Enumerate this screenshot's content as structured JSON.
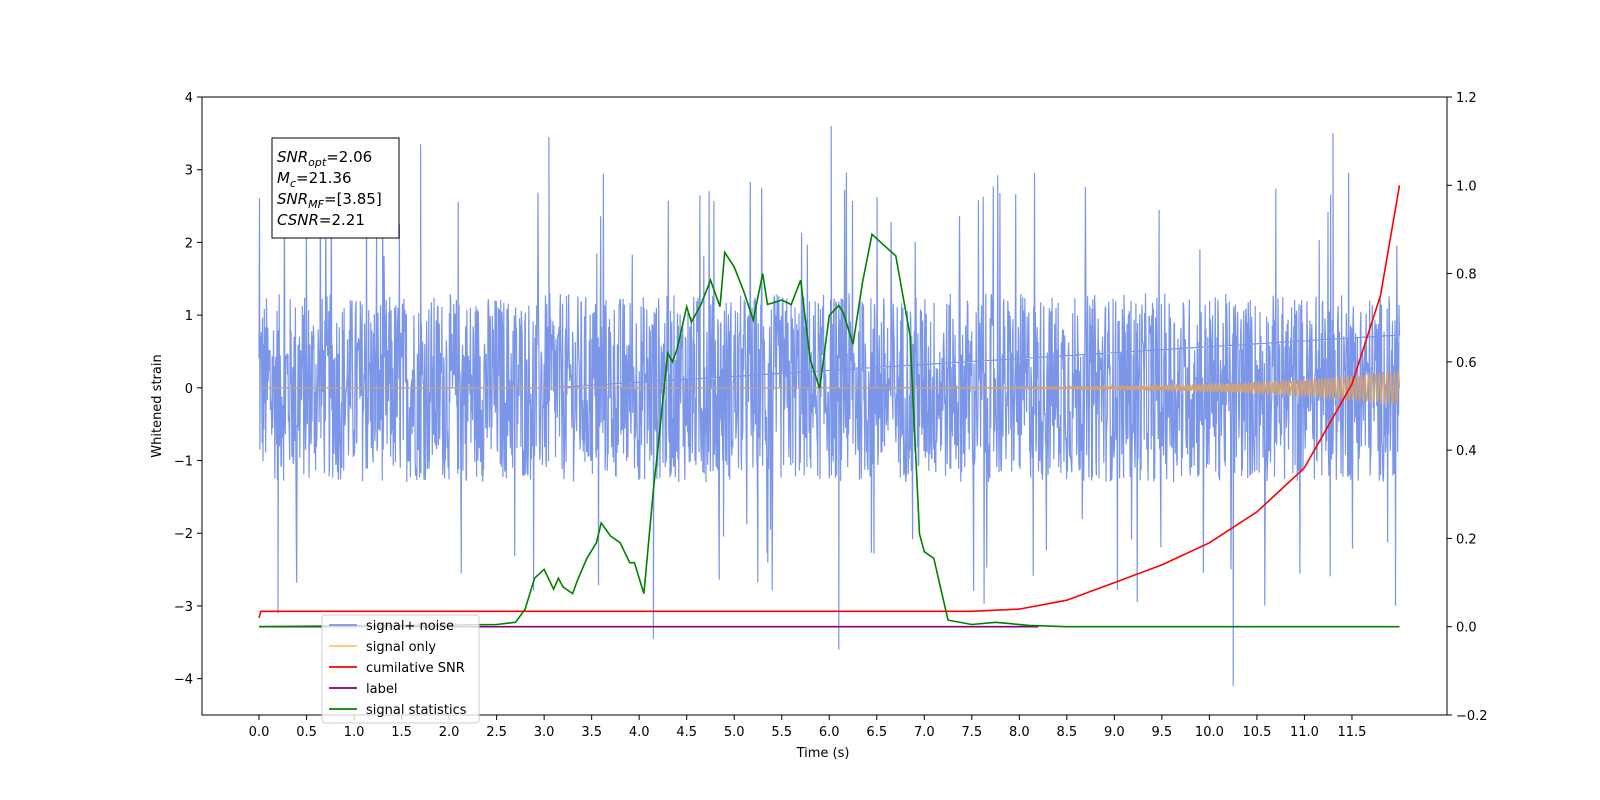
{
  "chart_data": {
    "type": "line",
    "title": "",
    "xlabel": "Time (s)",
    "ylabel": "Whitened strain",
    "x_ticks": [
      "0.0",
      "0.5",
      "1.0",
      "1.5",
      "2.0",
      "2.5",
      "3.0",
      "3.5",
      "4.0",
      "4.5",
      "5.0",
      "5.5",
      "6.0",
      "6.5",
      "7.0",
      "7.5",
      "8.0",
      "8.5",
      "9.0",
      "9.5",
      "10.0",
      "10.5",
      "11.0",
      "11.5"
    ],
    "xlim": [
      -0.6,
      12.5
    ],
    "ylim_left": [
      -4.5,
      4
    ],
    "ylim_right": [
      -0.2,
      1.2
    ],
    "y_ticks_left": [
      4,
      3,
      2,
      1,
      0,
      -1,
      -2,
      -3,
      -4
    ],
    "y_ticks_right": [
      "1.2",
      "1.0",
      "0.8",
      "0.6",
      "0.4",
      "0.2",
      "0.0",
      "−0.2"
    ],
    "info_box": [
      {
        "base": "SNR",
        "sub": "opt",
        "value": "=2.06"
      },
      {
        "base": "M",
        "sub": "c",
        "value": "=21.36"
      },
      {
        "base": "SNR",
        "sub": "MF",
        "value": "=[3.85]"
      },
      {
        "base": "CSNR",
        "sub": "",
        "value": "=2.21"
      }
    ],
    "legend": {
      "placement": "lower-left",
      "entries": [
        {
          "label": "signal+ noise",
          "color": "#7b96e8"
        },
        {
          "label": "signal only",
          "color": "#ffc46b"
        },
        {
          "label": "cumilative SNR",
          "color": "#ff0000"
        },
        {
          "label": "label",
          "color": "#800080"
        },
        {
          "label": "signal statistics",
          "color": "#008000"
        }
      ]
    },
    "series": [
      {
        "name": "signal+ noise",
        "axis": "left",
        "color": "#7b96e8",
        "x_range": [
          0,
          12
        ],
        "amplitude_typical": 1.3,
        "peak_max": 3.6,
        "peak_min": -4.1
      },
      {
        "name": "signal only",
        "axis": "left",
        "color": "#d4a373",
        "x_range": [
          0,
          12
        ],
        "envelope_end": 0.25
      },
      {
        "name": "cumilative SNR",
        "axis": "right",
        "color": "#ff0000",
        "x": [
          0,
          0.02,
          7.5,
          8.0,
          8.5,
          9.0,
          9.5,
          10.0,
          10.5,
          11.0,
          11.5,
          11.8,
          12.0
        ],
        "y": [
          0.02,
          0.035,
          0.035,
          0.04,
          0.06,
          0.1,
          0.14,
          0.19,
          0.26,
          0.36,
          0.55,
          0.75,
          1.0
        ]
      },
      {
        "name": "label",
        "axis": "right",
        "color": "#800080",
        "x": [
          0,
          8.2
        ],
        "y": [
          0.0,
          0.0
        ]
      },
      {
        "name": "signal statistics",
        "axis": "right",
        "color": "#008000",
        "x": [
          0,
          2.5,
          2.7,
          2.8,
          2.9,
          3.0,
          3.1,
          3.15,
          3.2,
          3.3,
          3.35,
          3.45,
          3.55,
          3.6,
          3.7,
          3.8,
          3.9,
          3.95,
          4.05,
          4.15,
          4.2,
          4.3,
          4.35,
          4.4,
          4.5,
          4.55,
          4.65,
          4.75,
          4.85,
          4.9,
          5.0,
          5.1,
          5.2,
          5.3,
          5.35,
          5.5,
          5.6,
          5.7,
          5.8,
          5.9,
          6.0,
          6.1,
          6.15,
          6.25,
          6.35,
          6.45,
          6.55,
          6.7,
          6.85,
          6.95,
          7.0,
          7.1,
          7.25,
          7.5,
          7.75,
          7.9,
          8.1,
          8.5,
          12
        ],
        "y": [
          0.0,
          0.005,
          0.01,
          0.04,
          0.11,
          0.13,
          0.085,
          0.11,
          0.09,
          0.075,
          0.105,
          0.155,
          0.19,
          0.235,
          0.205,
          0.19,
          0.145,
          0.145,
          0.075,
          0.31,
          0.41,
          0.62,
          0.6,
          0.63,
          0.725,
          0.69,
          0.73,
          0.785,
          0.725,
          0.848,
          0.815,
          0.76,
          0.695,
          0.8,
          0.73,
          0.74,
          0.73,
          0.785,
          0.605,
          0.54,
          0.705,
          0.728,
          0.71,
          0.64,
          0.78,
          0.889,
          0.869,
          0.84,
          0.66,
          0.21,
          0.17,
          0.155,
          0.015,
          0.005,
          0.01,
          0.007,
          0.003,
          0.0,
          0.0
        ]
      }
    ]
  }
}
